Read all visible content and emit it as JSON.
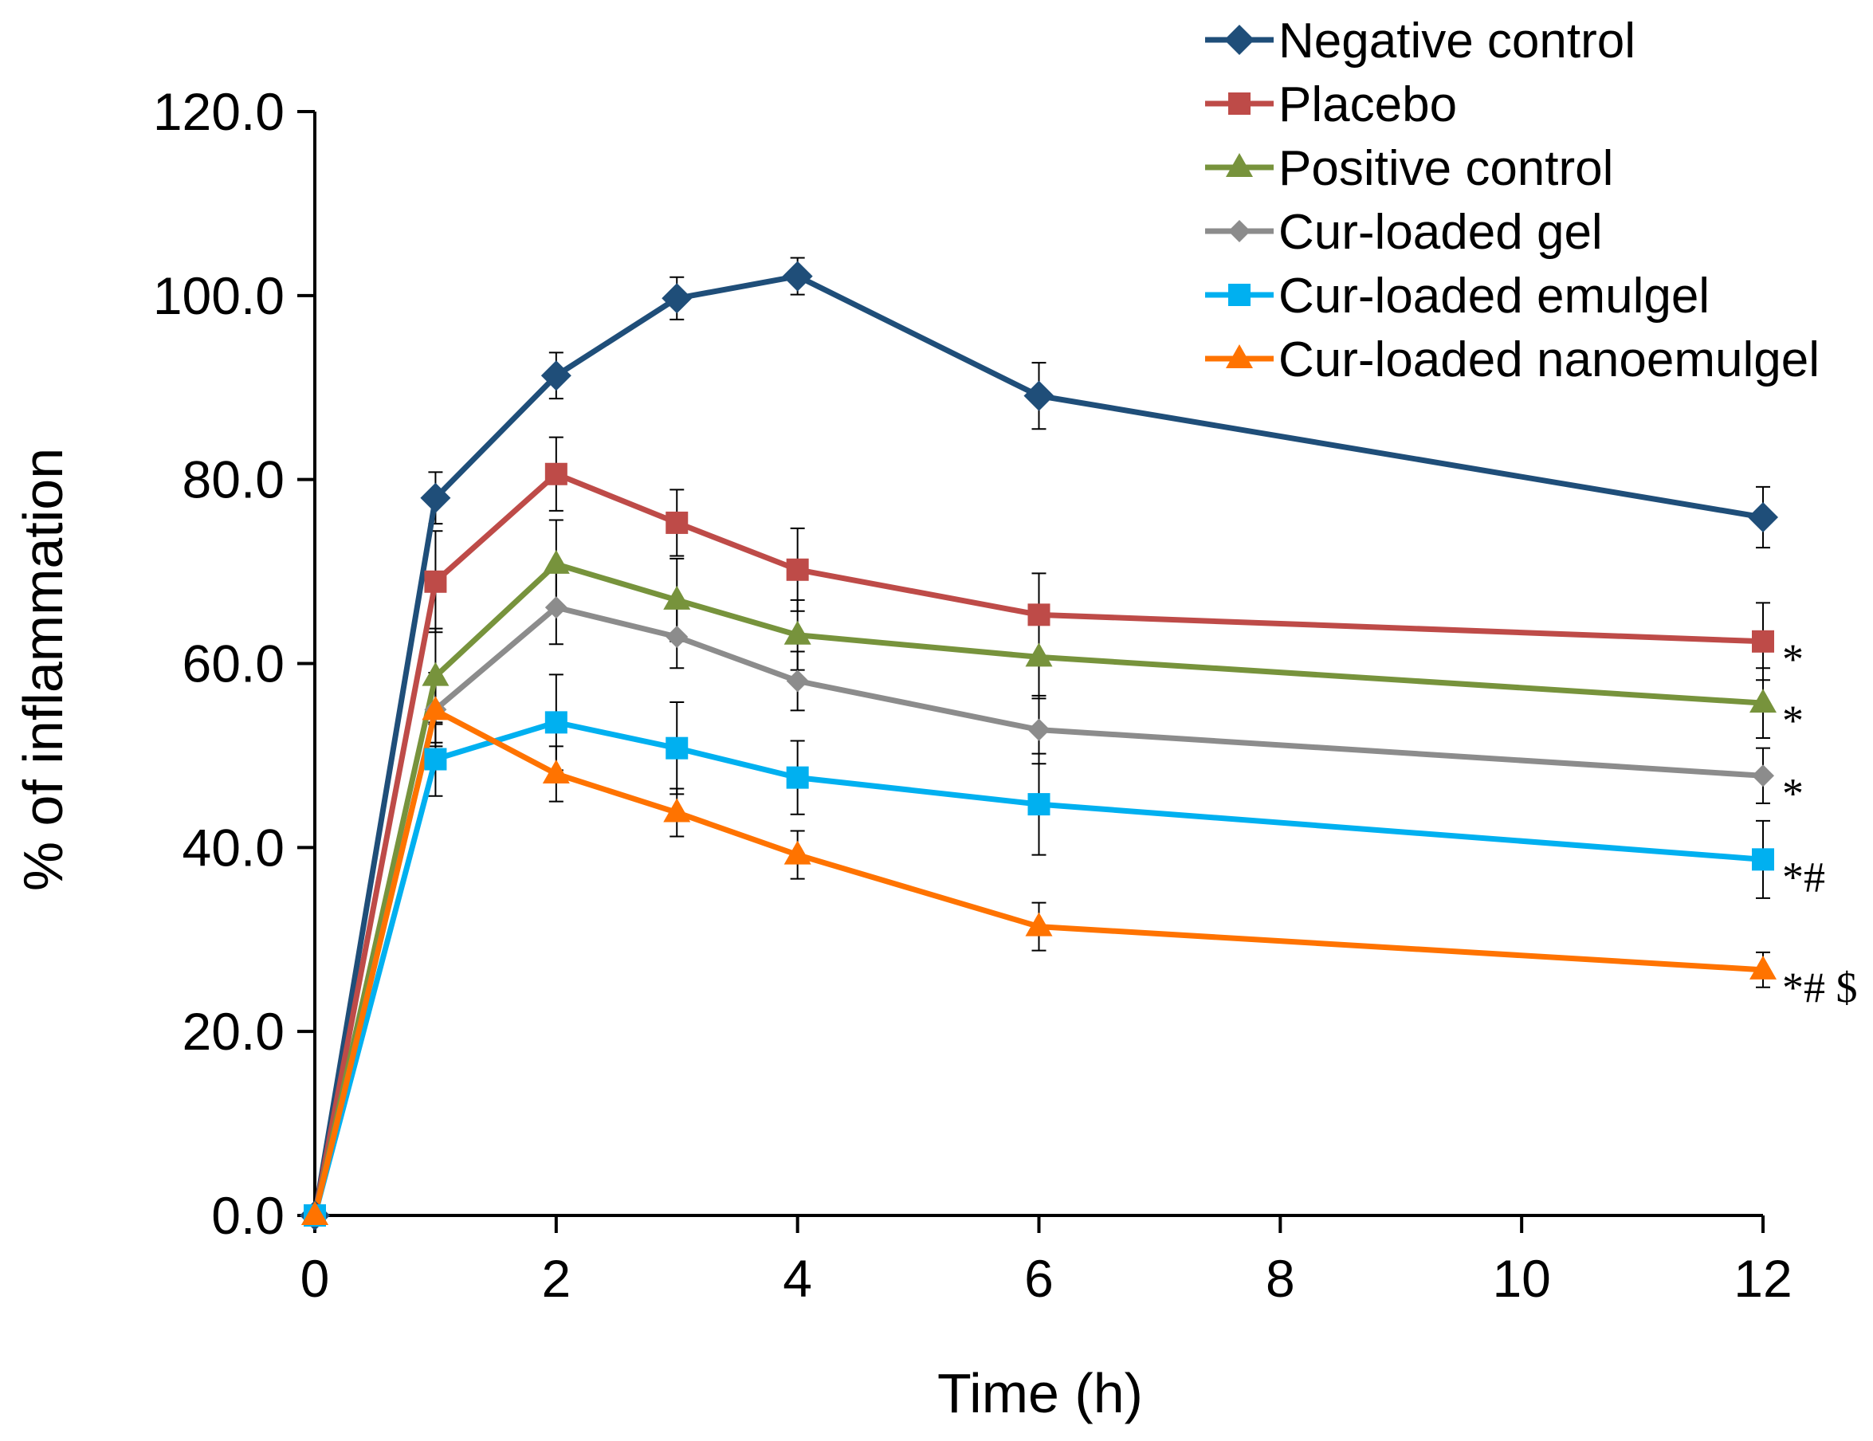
{
  "chart_data": {
    "type": "line",
    "title": "",
    "xlabel": "Time (h)",
    "ylabel": "% of inflammation",
    "xlim": [
      0,
      12
    ],
    "ylim": [
      0,
      120
    ],
    "xticks": [
      0,
      2,
      4,
      6,
      8,
      10,
      12
    ],
    "xtick_labels": [
      "0",
      "2",
      "4",
      "6",
      "8",
      "10",
      "12"
    ],
    "yticks": [
      0,
      20,
      40,
      60,
      80,
      100,
      120
    ],
    "ytick_labels": [
      "0.0",
      "20.0",
      "40.0",
      "60.0",
      "80.0",
      "100.0",
      "120.0"
    ],
    "grid": false,
    "legend_position": "top-right",
    "x": [
      0,
      1,
      2,
      3,
      4,
      6,
      12
    ],
    "series": [
      {
        "name": "Negative control",
        "color": "#1F4E79",
        "marker": "diamond",
        "values": [
          0,
          78.0,
          91.3,
          99.7,
          102.1,
          89.1,
          75.9
        ],
        "errors": [
          0,
          2.8,
          2.5,
          2.3,
          2.0,
          3.6,
          3.3
        ]
      },
      {
        "name": "Placebo",
        "color": "#BE4B48",
        "marker": "square",
        "values": [
          0,
          68.9,
          80.6,
          75.3,
          70.2,
          65.3,
          62.4
        ],
        "errors": [
          0,
          5.5,
          4.0,
          3.6,
          4.5,
          4.5,
          4.2
        ]
      },
      {
        "name": "Positive control",
        "color": "#77933C",
        "marker": "triangle",
        "values": [
          0,
          58.6,
          70.8,
          66.9,
          63.1,
          60.7,
          55.7
        ],
        "errors": [
          0,
          5.2,
          4.8,
          4.5,
          3.8,
          4.5,
          3.8
        ]
      },
      {
        "name": "Cur-loaded gel",
        "color": "#8C8C8C",
        "marker": "small-diamond",
        "values": [
          0,
          55.0,
          66.1,
          62.9,
          58.1,
          52.8,
          47.8
        ],
        "errors": [
          0,
          4.0,
          4.0,
          3.4,
          3.2,
          3.7,
          3.0
        ]
      },
      {
        "name": "Cur-loaded emulgel",
        "color": "#00B0F0",
        "marker": "square",
        "values": [
          0,
          49.6,
          53.6,
          50.8,
          47.6,
          44.7,
          38.7
        ],
        "errors": [
          0,
          4.0,
          5.2,
          5.0,
          4.0,
          5.5,
          4.2
        ]
      },
      {
        "name": "Cur-loaded nanoemulgel",
        "color": "#FF7300",
        "marker": "triangle",
        "values": [
          0,
          54.9,
          48.0,
          43.8,
          39.2,
          31.4,
          26.7
        ],
        "errors": [
          0,
          3.5,
          3.0,
          2.6,
          2.6,
          2.6,
          1.9
        ]
      }
    ],
    "annotations": [
      {
        "series": "Placebo",
        "text": "*"
      },
      {
        "series": "Positive control",
        "text": "*"
      },
      {
        "series": "Cur-loaded gel",
        "text": "*"
      },
      {
        "series": "Cur-loaded emulgel",
        "text": "*#"
      },
      {
        "series": "Cur-loaded nanoemulgel",
        "text": "*# $"
      }
    ]
  }
}
